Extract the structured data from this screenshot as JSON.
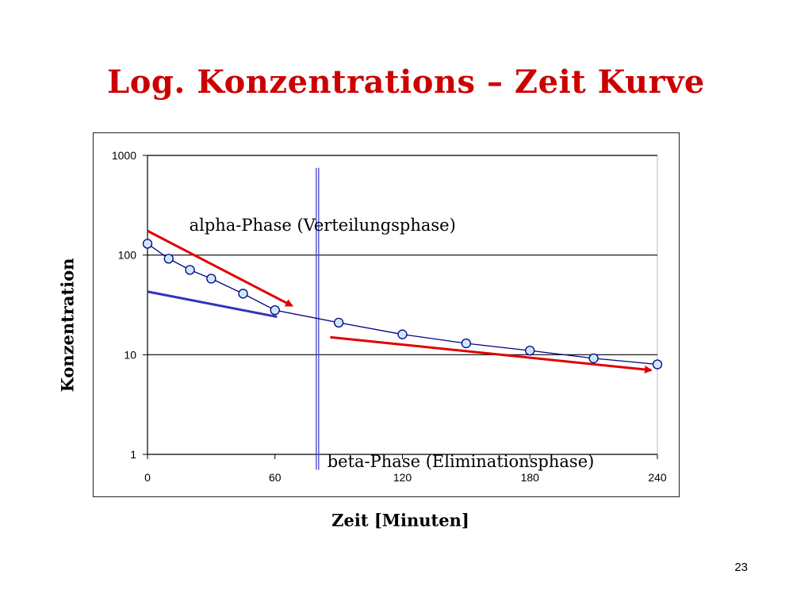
{
  "slide": {
    "title": "Log. Konzentrations – Zeit Kurve",
    "page_number": "23"
  },
  "chart_data": {
    "type": "line",
    "title": "",
    "xlabel": "Zeit [Minuten]",
    "ylabel": "Konzentration",
    "y_scale": "log",
    "xlim": [
      0,
      240
    ],
    "ylim": [
      1,
      1000
    ],
    "x_ticks": [
      "0",
      "60",
      "120",
      "180",
      "240"
    ],
    "y_ticks": [
      "1",
      "10",
      "100",
      "1000"
    ],
    "grid": "horizontal",
    "series": [
      {
        "name": "",
        "color": "#000080",
        "marker_fill": "#cce8ff",
        "x": [
          0,
          10,
          20,
          30,
          45,
          60,
          90,
          120,
          150,
          180,
          210,
          240
        ],
        "y": [
          130,
          92,
          71,
          58,
          41,
          28,
          21,
          16,
          13,
          11,
          9.2,
          8
        ]
      }
    ],
    "annotations": [
      {
        "text": "alpha-Phase (Verteilungsphase)",
        "x": 20,
        "y": 200
      },
      {
        "text": "beta-Phase (Eliminationsphase)",
        "x": 85,
        "y": 0.85
      }
    ],
    "overlay_lines": [
      {
        "label": "alpha-trend",
        "color": "#e00000",
        "arrow": true,
        "from": [
          0,
          175
        ],
        "to": [
          68,
          31
        ]
      },
      {
        "label": "beta-trend",
        "color": "#e00000",
        "arrow": true,
        "from": [
          86,
          15
        ],
        "to": [
          237,
          7
        ]
      },
      {
        "label": "beta-extrapolation",
        "color": "#3333bb",
        "arrow": false,
        "from": [
          0,
          43
        ],
        "to": [
          61,
          24
        ]
      },
      {
        "label": "phase-divider",
        "color": "#4444cc",
        "arrow": false,
        "from": [
          80,
          750
        ],
        "to": [
          80,
          0.7
        ]
      }
    ]
  }
}
